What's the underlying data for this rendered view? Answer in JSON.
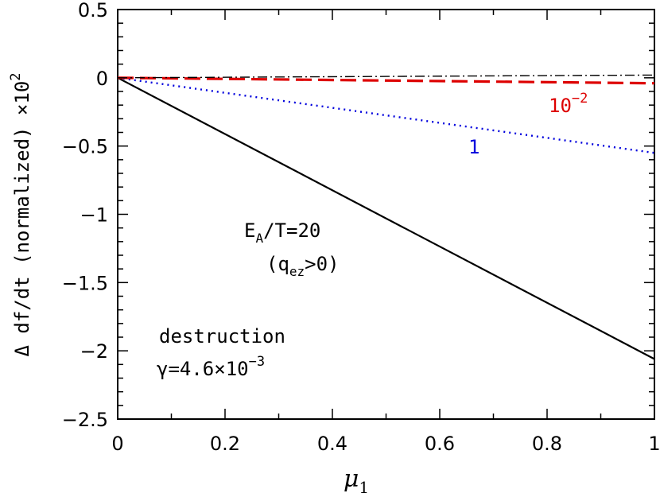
{
  "chart_data": {
    "type": "line",
    "xlabel": "μ",
    "xlabel_sub": "1",
    "ylabel": "Δ df/dt (normalized) ×10",
    "ylabel_sup": "2",
    "xlim": [
      0,
      1
    ],
    "ylim": [
      -2.5,
      0.5
    ],
    "xticks": [
      "0",
      "0.2",
      "0.4",
      "0.6",
      "0.8",
      "1"
    ],
    "yticks": [
      "0.5",
      "0",
      "−0.5",
      "−1",
      "−1.5",
      "−2",
      "−2.5"
    ],
    "series": [
      {
        "style": "solid",
        "color": "#000000",
        "x": [
          0,
          1
        ],
        "y": [
          0,
          -2.06
        ]
      },
      {
        "style": "dotted",
        "color": "#0000dd",
        "x": [
          0,
          1
        ],
        "y": [
          0,
          -0.55
        ]
      },
      {
        "style": "dashed",
        "color": "#dd0000",
        "x": [
          0,
          1
        ],
        "y": [
          0,
          -0.04
        ]
      },
      {
        "style": "dashdot",
        "color": "#000000",
        "x": [
          0,
          1
        ],
        "y": [
          0,
          0.02
        ]
      }
    ],
    "annotations": {
      "label_red_base": "10",
      "label_red_exp": "−2",
      "label_blue": "1",
      "ea_main": "E",
      "ea_sub": "A",
      "ea_rest": "/T=20",
      "qez_open": "(q",
      "qez_sub": "ez",
      "qez_close": ">0)",
      "destruction": "destruction",
      "gamma_main": "γ=4.6×10",
      "gamma_exp": "−3"
    }
  }
}
